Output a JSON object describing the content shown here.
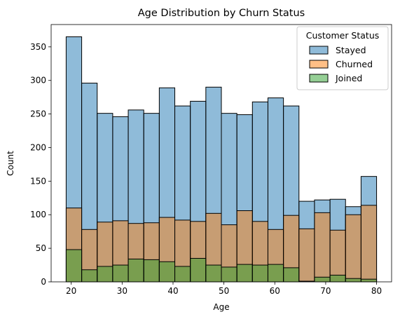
{
  "chart_data": {
    "type": "bar",
    "title": "Age Distribution by Churn Status",
    "xlabel": "Age",
    "ylabel": "Count",
    "xlim": [
      16.05,
      82.95
    ],
    "ylim": [
      0,
      383.25
    ],
    "x_ticks": [
      20,
      30,
      40,
      50,
      60,
      70,
      80
    ],
    "y_ticks": [
      0,
      50,
      100,
      150,
      200,
      250,
      300,
      350
    ],
    "bin_edges": [
      19.0,
      22.05,
      25.1,
      28.15,
      31.2,
      34.25,
      37.3,
      40.35,
      43.4,
      46.45,
      49.5,
      52.55,
      55.6,
      58.65,
      61.7,
      64.75,
      67.8,
      70.85,
      73.9,
      76.95,
      80.0
    ],
    "grid": false,
    "legend": {
      "title": "Customer Status",
      "placement": "top-right"
    },
    "series": [
      {
        "name": "Stayed",
        "color": "#1f77b4",
        "values": [
          365,
          296,
          251,
          246,
          256,
          251,
          289,
          262,
          269,
          290,
          251,
          249,
          268,
          274,
          262,
          120,
          122,
          123,
          112,
          157
        ]
      },
      {
        "name": "Churned",
        "color": "#ff7f0e",
        "values": [
          110,
          78,
          89,
          91,
          87,
          88,
          96,
          92,
          90,
          102,
          85,
          106,
          90,
          78,
          99,
          79,
          103,
          77,
          100,
          114
        ]
      },
      {
        "name": "Joined",
        "color": "#2ca02c",
        "values": [
          48,
          18,
          23,
          25,
          34,
          33,
          30,
          23,
          35,
          25,
          22,
          26,
          25,
          26,
          21,
          1,
          7,
          10,
          5,
          4
        ]
      }
    ]
  }
}
